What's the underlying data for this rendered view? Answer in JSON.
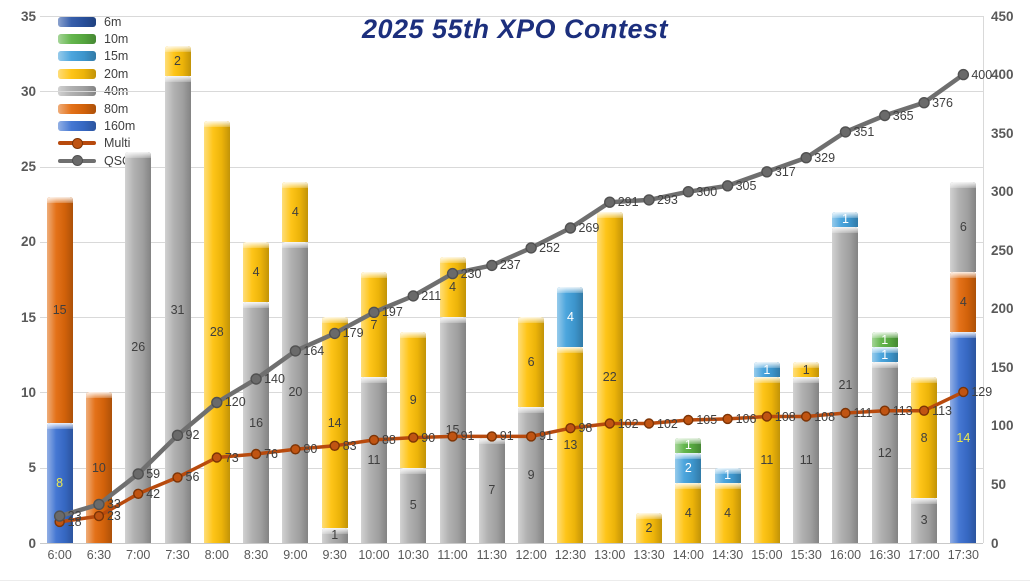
{
  "chart_data": {
    "type": "bar",
    "title": "2025 55th XPO Contest",
    "xlabel": "",
    "ylabel": "",
    "left_axis": {
      "min": 0,
      "max": 35,
      "step": 5,
      "ticks": [
        35,
        30,
        25,
        20,
        15,
        10,
        5,
        0
      ]
    },
    "right_axis": {
      "min": 0,
      "max": 450,
      "step": 50,
      "ticks": [
        450,
        400,
        350,
        300,
        250,
        200,
        150,
        100,
        50,
        0
      ]
    },
    "grid": true,
    "legend_position": "top-left",
    "categories": [
      "6:00",
      "6:30",
      "7:00",
      "7:30",
      "8:00",
      "8:30",
      "9:00",
      "9:30",
      "10:00",
      "10:30",
      "11:00",
      "11:30",
      "12:00",
      "12:30",
      "13:00",
      "13:30",
      "14:00",
      "14:30",
      "15:00",
      "15:30",
      "16:00",
      "16:30",
      "17:00",
      "17:30"
    ],
    "series": [
      {
        "name": "160m",
        "color": "#3a6fd0",
        "label_color": "#ede94f",
        "values": [
          8,
          0,
          0,
          0,
          0,
          0,
          0,
          0,
          0,
          0,
          0,
          0,
          0,
          0,
          0,
          0,
          0,
          0,
          0,
          0,
          0,
          0,
          0,
          14
        ]
      },
      {
        "name": "80m",
        "color": "#e2690b",
        "label_color": "#3f3f3f",
        "values": [
          15,
          10,
          0,
          0,
          0,
          0,
          0,
          0,
          0,
          0,
          0,
          0,
          0,
          0,
          0,
          0,
          0,
          0,
          0,
          0,
          0,
          0,
          0,
          4
        ]
      },
      {
        "name": "40m",
        "color": "#acacac",
        "label_color": "#3f3f3f",
        "values": [
          0,
          0,
          26,
          31,
          0,
          16,
          20,
          1,
          11,
          5,
          15,
          7,
          9,
          0,
          0,
          0,
          0,
          0,
          0,
          11,
          21,
          12,
          3,
          6
        ]
      },
      {
        "name": "20m",
        "color": "#fec10a",
        "label_color": "#3f3f3f",
        "values": [
          0,
          0,
          0,
          2,
          28,
          4,
          4,
          14,
          7,
          9,
          4,
          0,
          6,
          13,
          22,
          2,
          4,
          4,
          11,
          1,
          0,
          0,
          8,
          0
        ]
      },
      {
        "name": "15m",
        "color": "#41a0db",
        "label_color": "#ffffff",
        "values": [
          0,
          0,
          0,
          0,
          0,
          0,
          0,
          0,
          0,
          0,
          0,
          0,
          0,
          4,
          0,
          0,
          2,
          1,
          1,
          0,
          1,
          1,
          0,
          0
        ]
      },
      {
        "name": "10m",
        "color": "#5bb243",
        "label_color": "#ffffff",
        "values": [
          0,
          0,
          0,
          0,
          0,
          0,
          0,
          0,
          0,
          0,
          0,
          0,
          0,
          0,
          0,
          0,
          1,
          0,
          0,
          0,
          0,
          1,
          0,
          0
        ]
      },
      {
        "name": "6m",
        "color": "#2b55a6",
        "label_color": "#ffffff",
        "values": [
          0,
          0,
          0,
          0,
          0,
          0,
          0,
          0,
          0,
          0,
          0,
          0,
          0,
          0,
          0,
          0,
          0,
          0,
          0,
          0,
          0,
          0,
          0,
          0
        ]
      }
    ],
    "lines": [
      {
        "name": "Multi",
        "axis": "right",
        "color": "#b84a0d",
        "marker_fill": "#c05412",
        "marker_stroke": "#7c3406",
        "values": [
          18,
          23,
          42,
          56,
          73,
          76,
          80,
          83,
          88,
          90,
          91,
          91,
          91,
          98,
          102,
          102,
          105,
          106,
          108,
          108,
          111,
          113,
          113,
          129
        ]
      },
      {
        "name": "QSO",
        "axis": "right",
        "color": "#6f6f6f",
        "marker_fill": "#6a6a6a",
        "marker_stroke": "#515151",
        "values": [
          23,
          33,
          59,
          92,
          120,
          140,
          164,
          179,
          197,
          211,
          230,
          237,
          252,
          269,
          291,
          293,
          300,
          305,
          317,
          329,
          351,
          365,
          376,
          400
        ]
      }
    ],
    "legend": [
      "6m",
      "10m",
      "15m",
      "20m",
      "40m",
      "80m",
      "160m",
      "Multi",
      "QSO"
    ]
  }
}
